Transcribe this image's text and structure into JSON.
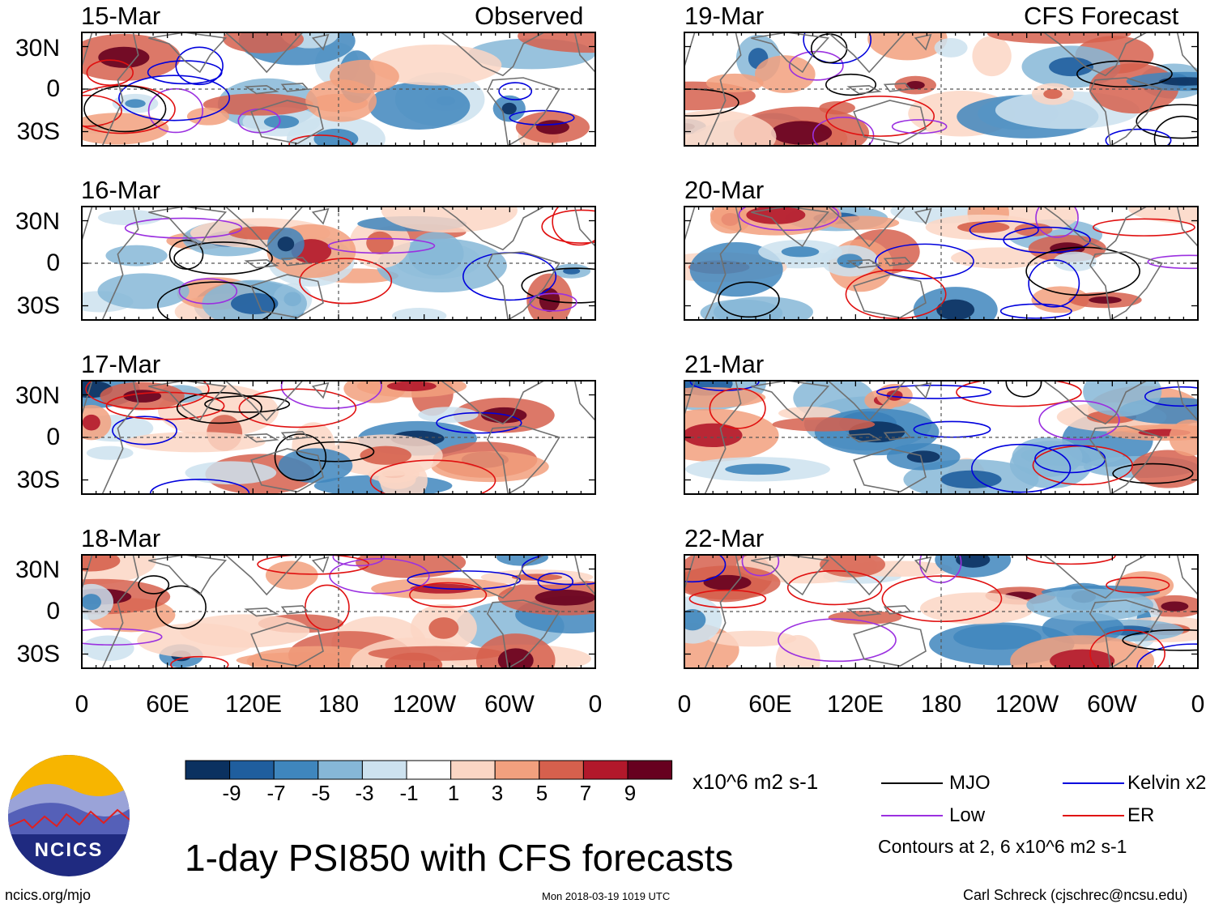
{
  "chart_data": {
    "type": "heatmap",
    "title": "1-day PSI850 with CFS forecasts",
    "units": "x10^6 m2 s-1",
    "column_headers": {
      "observed": "Observed",
      "forecast": "CFS Forecast"
    },
    "lat_ticks": [
      "30N",
      "0",
      "30S"
    ],
    "lon_ticks": [
      "0",
      "60E",
      "120E",
      "180",
      "120W",
      "60W",
      "0"
    ],
    "panels": [
      {
        "date": "15-Mar",
        "column": "observed"
      },
      {
        "date": "16-Mar",
        "column": "observed"
      },
      {
        "date": "17-Mar",
        "column": "observed"
      },
      {
        "date": "18-Mar",
        "column": "observed"
      },
      {
        "date": "19-Mar",
        "column": "forecast"
      },
      {
        "date": "20-Mar",
        "column": "forecast"
      },
      {
        "date": "21-Mar",
        "column": "forecast"
      },
      {
        "date": "22-Mar",
        "column": "forecast"
      }
    ],
    "colorbar": {
      "labels": [
        "-9",
        "-7",
        "-5",
        "-3",
        "-1",
        "1",
        "3",
        "5",
        "7",
        "9"
      ],
      "colors": [
        "#0b3160",
        "#1f5e9e",
        "#3f86bd",
        "#86b7d7",
        "#cde2ef",
        "#ffffff",
        "#fbd6c4",
        "#f2a07e",
        "#d6604d",
        "#b2182b",
        "#67001f"
      ]
    },
    "legend": [
      {
        "name": "MJO",
        "color": "#000000"
      },
      {
        "name": "Kelvin x2",
        "color": "#0000dd"
      },
      {
        "name": "Low",
        "color": "#9b30e0"
      },
      {
        "name": "ER",
        "color": "#e01010"
      }
    ],
    "contour_note": "Contours at 2, 6 x10^6 m2 s-1"
  },
  "footer": {
    "website": "ncics.org/mjo",
    "timestamp": "Mon 2018-03-19 1019 UTC",
    "credit": "Carl Schreck (cjschrec@ncsu.edu)"
  },
  "logo": {
    "text": "NCICS"
  },
  "colors": {
    "land_outline": "#707070",
    "panel_border": "#000000",
    "logo_sky": "#f7b500",
    "logo_disk": "#1f2a80"
  }
}
